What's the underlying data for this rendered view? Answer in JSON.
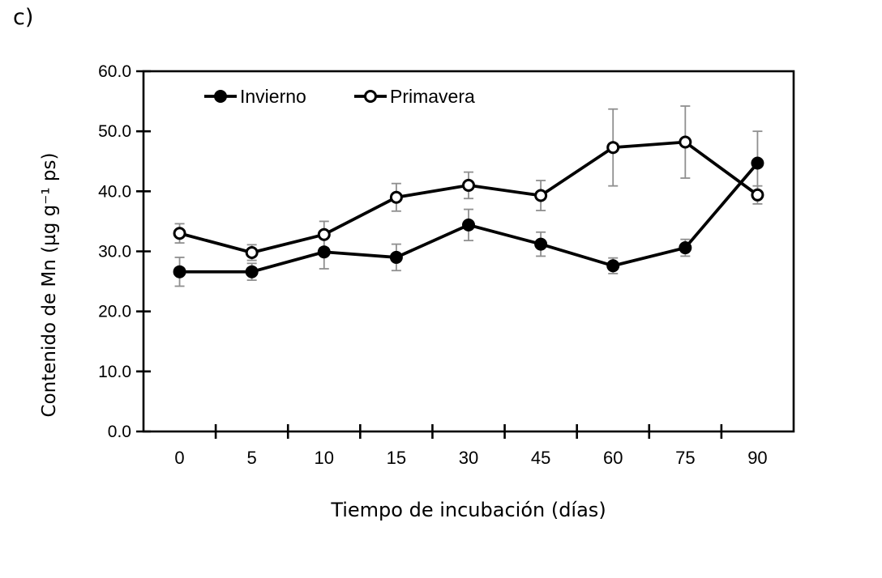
{
  "panel_label": "c)",
  "chart_data": {
    "type": "line",
    "title": "",
    "xlabel": "Tiempo de incubación (días)",
    "ylabel": "Contenido de Mn  (µg g⁻¹ ps)",
    "categories": [
      "0",
      "5",
      "10",
      "15",
      "30",
      "45",
      "60",
      "75",
      "90"
    ],
    "y_tick_labels": [
      "0.0",
      "10.0",
      "20.0",
      "30.0",
      "40.0",
      "50.0",
      "60.0"
    ],
    "y_tick_values": [
      0,
      10,
      20,
      30,
      40,
      50,
      60
    ],
    "ylim": [
      0,
      60
    ],
    "grid": false,
    "legend_position": "top-inside",
    "series": [
      {
        "name": "Invierno",
        "marker": "filled-circle",
        "color": "#000000",
        "values": [
          26.6,
          26.6,
          29.9,
          29.0,
          34.4,
          31.2,
          27.6,
          30.6,
          44.7
        ],
        "errors": [
          2.4,
          1.4,
          2.8,
          2.2,
          2.6,
          2.0,
          1.3,
          1.4,
          5.3
        ]
      },
      {
        "name": "Primavera",
        "marker": "open-circle",
        "color": "#000000",
        "values": [
          33.0,
          29.8,
          32.8,
          39.0,
          41.0,
          39.3,
          47.3,
          48.2,
          39.4
        ],
        "errors": [
          1.6,
          1.3,
          2.2,
          2.3,
          2.2,
          2.5,
          6.4,
          6.0,
          1.5
        ]
      }
    ],
    "error_bar_color": "#8f8f8f",
    "axis_color": "#000000"
  }
}
